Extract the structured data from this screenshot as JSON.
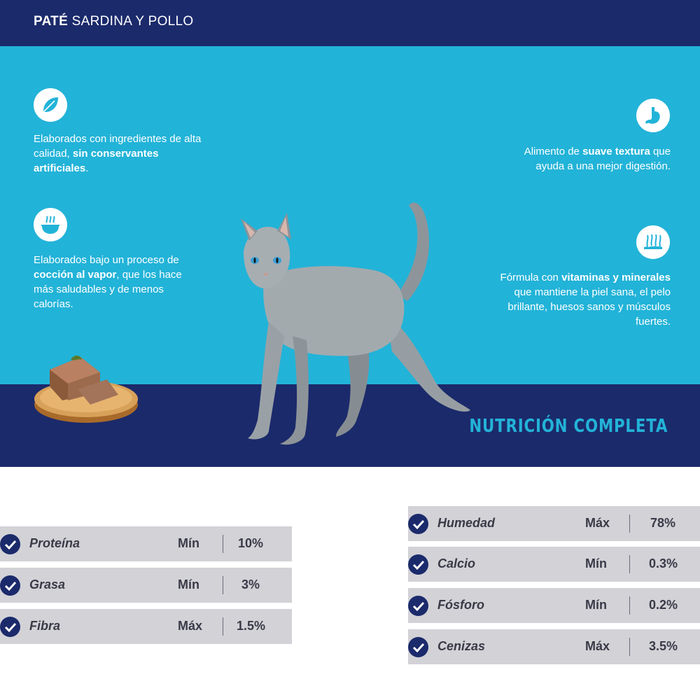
{
  "header": {
    "title_bold": "PATÉ",
    "title_rest": " SARDINA Y POLLO"
  },
  "features": [
    {
      "icon": "leaf-icon",
      "parts": [
        "Elaborados con ingredientes de alta calidad, ",
        "sin conservantes artificiales",
        "."
      ]
    },
    {
      "icon": "steam-bowl-icon",
      "parts": [
        "Elaborados bajo un proceso de ",
        "cocción al vapor",
        ", que los hace más saludables y de menos calorías."
      ]
    },
    {
      "icon": "stomach-icon",
      "parts": [
        "Alimento de ",
        "suave textura",
        " que ayuda a una mejor digestión."
      ]
    },
    {
      "icon": "fur-wave-icon",
      "parts": [
        "Fórmula con ",
        "vitaminas y minerales",
        " que mantiene la piel sana, el pelo brillante, huesos sanos y músculos fuertes."
      ]
    }
  ],
  "section_title": "NUTRICIÓN COMPLETA",
  "nutrition_left": [
    {
      "name": "Proteína",
      "kind": "Mín",
      "value": "10%"
    },
    {
      "name": "Grasa",
      "kind": "Mín",
      "value": "3%"
    },
    {
      "name": "Fibra",
      "kind": "Máx",
      "value": "1.5%"
    }
  ],
  "nutrition_right": [
    {
      "name": "Humedad",
      "kind": "Máx",
      "value": "78%"
    },
    {
      "name": "Calcio",
      "kind": "Mín",
      "value": "0.3%"
    },
    {
      "name": "Fósforo",
      "kind": "Mín",
      "value": "0.2%"
    },
    {
      "name": "Cenizas",
      "kind": "Máx",
      "value": "3.5%"
    }
  ],
  "colors": {
    "navy": "#1b2a6b",
    "cyan": "#22b3d8",
    "row_gray": "#d2d2d7",
    "text_dark": "#3a3a48"
  }
}
